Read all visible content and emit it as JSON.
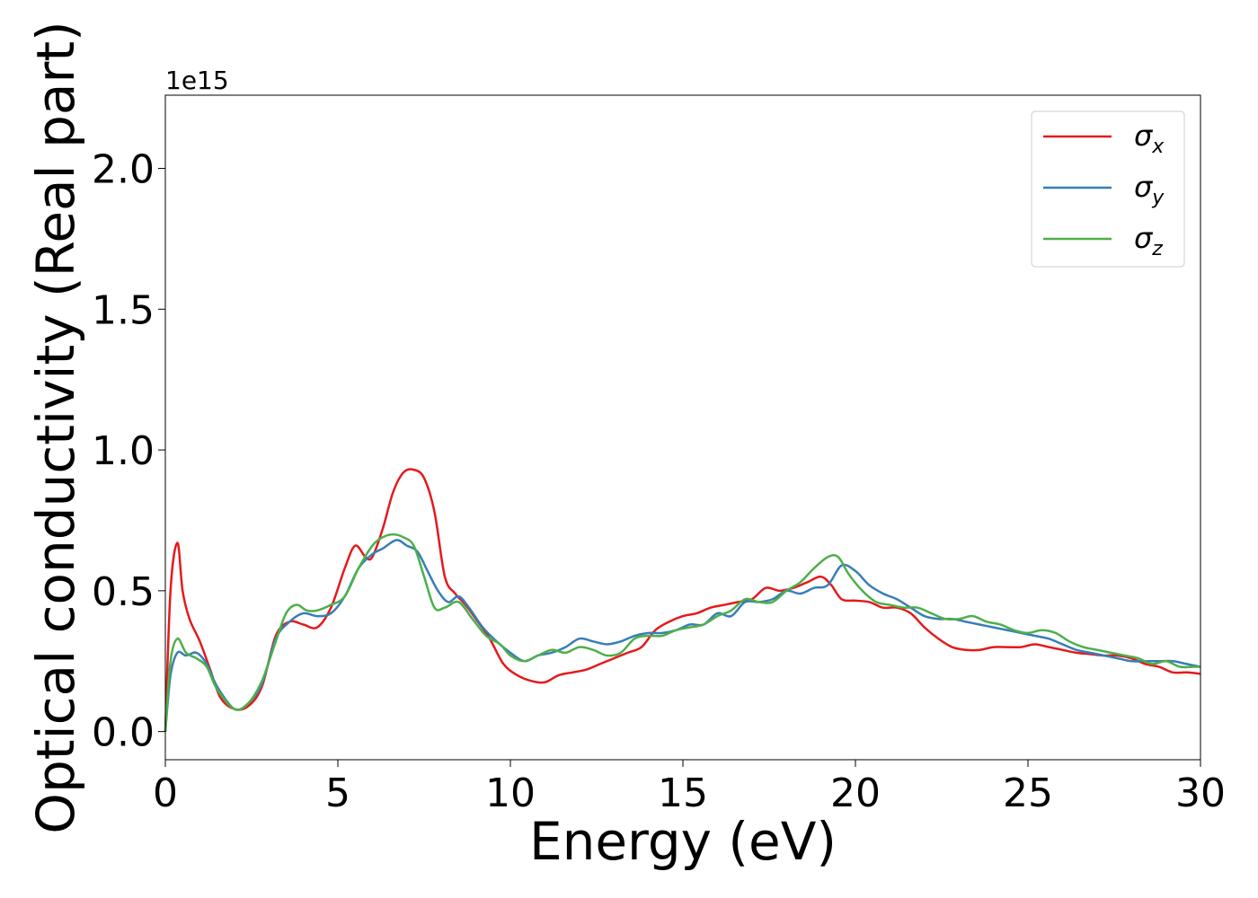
{
  "chart_data": {
    "type": "line",
    "title": "",
    "xlabel": "Energy (eV)",
    "ylabel": "Optical conductivity (Real part)",
    "y_offset_label": "1e15",
    "xlim": [
      0,
      30
    ],
    "ylim": [
      -0.1,
      2.26
    ],
    "xticks": [
      0,
      5,
      10,
      15,
      20,
      25,
      30
    ],
    "xtick_labels": [
      "0",
      "5",
      "10",
      "15",
      "20",
      "25",
      "30"
    ],
    "yticks": [
      0.0,
      0.5,
      1.0,
      1.5,
      2.0
    ],
    "ytick_labels": [
      "0.0",
      "0.5",
      "1.0",
      "1.5",
      "2.0"
    ],
    "grid": false,
    "legend_position": "top-right",
    "series": [
      {
        "name": "σx",
        "label_base": "σ",
        "label_sub": "x",
        "color": "#e41a1c",
        "x": [
          0,
          0.15,
          0.35,
          0.5,
          0.7,
          1.0,
          1.3,
          1.6,
          2.0,
          2.4,
          2.8,
          3.2,
          3.6,
          4.0,
          4.4,
          4.8,
          5.2,
          5.5,
          5.8,
          6.0,
          6.3,
          6.6,
          6.9,
          7.2,
          7.5,
          7.8,
          8.1,
          8.4,
          8.7,
          9.0,
          9.4,
          9.8,
          10.2,
          10.6,
          11.0,
          11.4,
          11.8,
          12.2,
          12.6,
          13.0,
          13.4,
          13.8,
          14.2,
          14.6,
          15.0,
          15.4,
          15.8,
          16.2,
          16.6,
          17.0,
          17.4,
          17.8,
          18.2,
          18.6,
          19.0,
          19.3,
          19.6,
          20.0,
          20.4,
          20.8,
          21.2,
          21.6,
          22.0,
          22.4,
          22.8,
          23.2,
          23.6,
          24.0,
          24.4,
          24.8,
          25.2,
          25.6,
          26.0,
          26.4,
          26.8,
          27.2,
          27.6,
          28.0,
          28.4,
          28.8,
          29.2,
          29.6,
          30.0
        ],
        "y": [
          0.0,
          0.5,
          0.67,
          0.5,
          0.4,
          0.32,
          0.22,
          0.12,
          0.08,
          0.09,
          0.16,
          0.34,
          0.39,
          0.38,
          0.37,
          0.44,
          0.58,
          0.66,
          0.62,
          0.62,
          0.72,
          0.85,
          0.92,
          0.93,
          0.9,
          0.78,
          0.55,
          0.49,
          0.45,
          0.4,
          0.33,
          0.24,
          0.2,
          0.18,
          0.175,
          0.2,
          0.21,
          0.22,
          0.24,
          0.26,
          0.28,
          0.3,
          0.36,
          0.39,
          0.41,
          0.42,
          0.44,
          0.45,
          0.46,
          0.47,
          0.51,
          0.5,
          0.51,
          0.53,
          0.55,
          0.52,
          0.47,
          0.465,
          0.46,
          0.44,
          0.44,
          0.42,
          0.37,
          0.33,
          0.3,
          0.29,
          0.29,
          0.3,
          0.3,
          0.3,
          0.31,
          0.3,
          0.29,
          0.28,
          0.275,
          0.27,
          0.27,
          0.26,
          0.24,
          0.23,
          0.21,
          0.21,
          0.205
        ]
      },
      {
        "name": "σy",
        "label_base": "σ",
        "label_sub": "y",
        "color": "#377eb8",
        "x": [
          0,
          0.15,
          0.35,
          0.6,
          0.9,
          1.2,
          1.5,
          2.0,
          2.4,
          2.8,
          3.2,
          3.6,
          4.0,
          4.4,
          4.8,
          5.2,
          5.6,
          6.0,
          6.3,
          6.7,
          7.0,
          7.3,
          7.6,
          7.9,
          8.2,
          8.5,
          8.8,
          9.2,
          9.6,
          10.0,
          10.4,
          10.8,
          11.2,
          11.6,
          12.0,
          12.4,
          12.8,
          13.2,
          13.6,
          14.0,
          14.4,
          14.8,
          15.2,
          15.6,
          16.0,
          16.4,
          16.8,
          17.2,
          17.6,
          18.0,
          18.4,
          18.8,
          19.2,
          19.6,
          20.0,
          20.4,
          20.8,
          21.2,
          21.6,
          22.0,
          22.4,
          22.8,
          23.2,
          23.6,
          24.0,
          24.4,
          24.8,
          25.2,
          25.6,
          26.0,
          26.4,
          26.8,
          27.2,
          27.6,
          28.0,
          28.4,
          28.8,
          29.2,
          29.6,
          30.0
        ],
        "y": [
          0.0,
          0.2,
          0.28,
          0.27,
          0.28,
          0.24,
          0.16,
          0.08,
          0.1,
          0.17,
          0.33,
          0.39,
          0.42,
          0.41,
          0.42,
          0.48,
          0.58,
          0.63,
          0.65,
          0.68,
          0.66,
          0.64,
          0.57,
          0.5,
          0.46,
          0.48,
          0.44,
          0.37,
          0.32,
          0.28,
          0.25,
          0.27,
          0.28,
          0.3,
          0.33,
          0.32,
          0.31,
          0.32,
          0.34,
          0.35,
          0.35,
          0.36,
          0.38,
          0.38,
          0.42,
          0.41,
          0.46,
          0.46,
          0.47,
          0.5,
          0.49,
          0.51,
          0.52,
          0.59,
          0.57,
          0.52,
          0.49,
          0.47,
          0.44,
          0.41,
          0.4,
          0.4,
          0.39,
          0.38,
          0.37,
          0.36,
          0.35,
          0.34,
          0.33,
          0.31,
          0.29,
          0.28,
          0.27,
          0.26,
          0.25,
          0.25,
          0.25,
          0.25,
          0.24,
          0.23
        ]
      },
      {
        "name": "σz",
        "label_base": "σ",
        "label_sub": "z",
        "color": "#4daf4a",
        "x": [
          0,
          0.15,
          0.35,
          0.6,
          0.9,
          1.2,
          1.5,
          2.0,
          2.4,
          2.8,
          3.2,
          3.5,
          3.8,
          4.1,
          4.4,
          4.8,
          5.2,
          5.6,
          6.0,
          6.3,
          6.6,
          6.9,
          7.2,
          7.5,
          7.8,
          8.1,
          8.5,
          8.9,
          9.3,
          9.7,
          10.0,
          10.4,
          10.8,
          11.2,
          11.6,
          12.0,
          12.4,
          12.8,
          13.2,
          13.6,
          14.0,
          14.4,
          14.8,
          15.2,
          15.6,
          16.0,
          16.4,
          16.8,
          17.2,
          17.6,
          18.0,
          18.4,
          18.8,
          19.2,
          19.5,
          19.8,
          20.2,
          20.6,
          21.0,
          21.4,
          21.8,
          22.2,
          22.6,
          23.0,
          23.4,
          23.8,
          24.2,
          24.6,
          25.0,
          25.4,
          25.8,
          26.2,
          26.6,
          27.0,
          27.4,
          27.8,
          28.2,
          28.6,
          29.0,
          29.4,
          29.8,
          30.0
        ],
        "y": [
          0.0,
          0.25,
          0.33,
          0.28,
          0.26,
          0.23,
          0.15,
          0.08,
          0.1,
          0.18,
          0.32,
          0.42,
          0.45,
          0.43,
          0.43,
          0.45,
          0.48,
          0.58,
          0.66,
          0.69,
          0.7,
          0.69,
          0.66,
          0.55,
          0.44,
          0.44,
          0.46,
          0.4,
          0.34,
          0.31,
          0.27,
          0.25,
          0.27,
          0.29,
          0.28,
          0.3,
          0.29,
          0.27,
          0.28,
          0.33,
          0.34,
          0.34,
          0.36,
          0.37,
          0.38,
          0.41,
          0.43,
          0.47,
          0.46,
          0.46,
          0.5,
          0.53,
          0.58,
          0.62,
          0.62,
          0.56,
          0.5,
          0.46,
          0.45,
          0.44,
          0.44,
          0.42,
          0.4,
          0.4,
          0.41,
          0.39,
          0.38,
          0.36,
          0.35,
          0.36,
          0.35,
          0.32,
          0.3,
          0.29,
          0.28,
          0.27,
          0.26,
          0.24,
          0.25,
          0.23,
          0.23,
          0.23
        ]
      }
    ]
  }
}
